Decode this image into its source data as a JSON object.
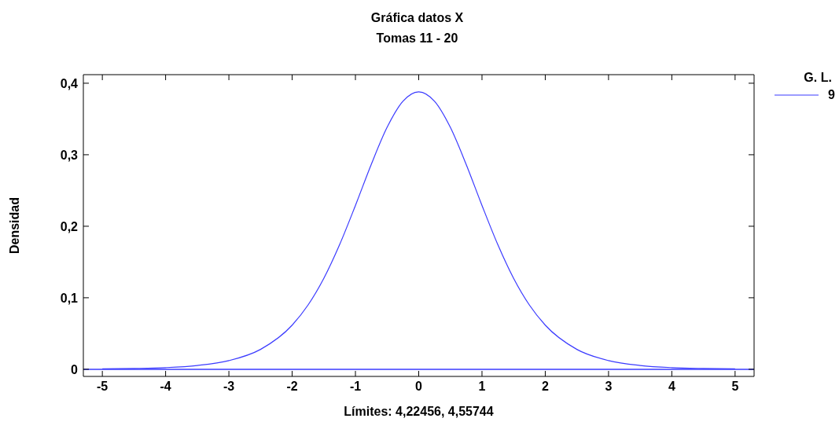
{
  "chart_data": {
    "type": "line",
    "title": "Gráfica datos X",
    "subtitle": "Tomas 11 - 20",
    "xlabel": "Límites: 4,22456, 4,55744",
    "ylabel": "Densidad",
    "legend_title": "G. L.",
    "legend": "top right",
    "grid": false,
    "marker": "none",
    "line_style": "solid",
    "x": [
      -5,
      -4.5,
      -4,
      -3.5,
      -3,
      -2.5,
      -2,
      -1.75,
      -1.5,
      -1.25,
      -1,
      -0.75,
      -0.5,
      -0.25,
      0,
      0.25,
      0.5,
      0.75,
      1,
      1.25,
      1.5,
      1.75,
      2,
      2.5,
      3,
      3.5,
      4,
      4.5,
      5
    ],
    "series": [
      {
        "name": "9",
        "color": "#3b3bff",
        "values": [
          0.0005,
          0.0011,
          0.0023,
          0.0053,
          0.0121,
          0.0278,
          0.0617,
          0.0897,
          0.1271,
          0.1743,
          0.2291,
          0.2865,
          0.3383,
          0.3748,
          0.388,
          0.3748,
          0.3383,
          0.2865,
          0.2291,
          0.1743,
          0.1271,
          0.0897,
          0.0617,
          0.0278,
          0.0121,
          0.0053,
          0.0023,
          0.0011,
          0.0005
        ]
      }
    ],
    "ref_lines": [
      {
        "axis": "y",
        "value": 0,
        "color": "#3b3bff",
        "line_style": "solid"
      }
    ],
    "xlim": [
      -5.3,
      5.3
    ],
    "xticks": [
      -5,
      -4,
      -3,
      -2,
      -1,
      0,
      1,
      2,
      3,
      4,
      5
    ],
    "ylim": [
      -0.01,
      0.412
    ],
    "yticks": [
      0,
      {
        "value": 0.1,
        "label": "0,1"
      },
      {
        "value": 0.2,
        "label": "0,2"
      },
      {
        "value": 0.3,
        "label": "0,3"
      },
      {
        "value": 0.4,
        "label": "0,4"
      }
    ]
  }
}
